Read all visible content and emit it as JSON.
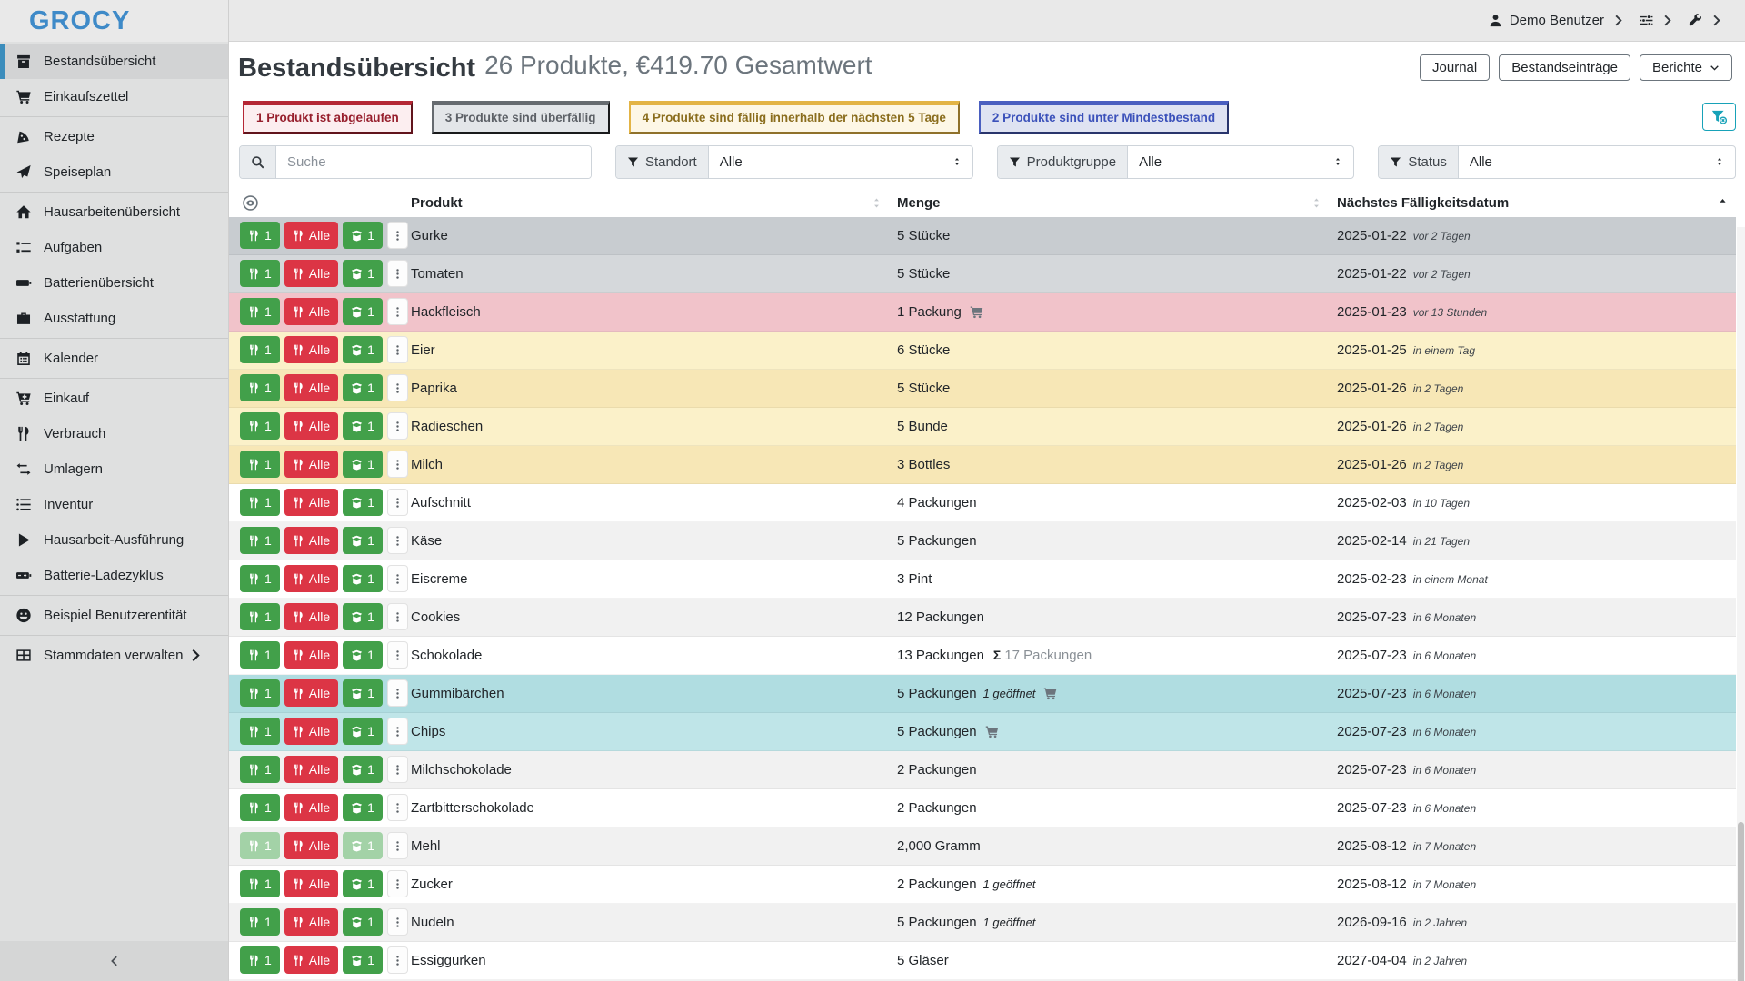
{
  "brand": {
    "name": "GROCY"
  },
  "topbar": {
    "user_label": "Demo Benutzer"
  },
  "page": {
    "title": "Bestandsübersicht",
    "subtitle": "26 Produkte, €419.70 Gesamtwert",
    "actions": [
      "Journal",
      "Bestandseinträge",
      "Berichte"
    ]
  },
  "alerts": [
    {
      "text": "1 Produkt ist abgelaufen",
      "theme": "red"
    },
    {
      "text": "3 Produkte sind überfällig",
      "theme": "gray"
    },
    {
      "text": "4 Produkte sind fällig innerhalb der nächsten 5 Tage",
      "theme": "yellow"
    },
    {
      "text": "2 Produkte sind unter Mindestbestand",
      "theme": "blue"
    }
  ],
  "filters": {
    "search_placeholder": "Suche",
    "selects": [
      {
        "label": "Standort",
        "value": "Alle",
        "icon": "funnel"
      },
      {
        "label": "Produktgruppe",
        "value": "Alle",
        "icon": "funnel"
      },
      {
        "label": "Status",
        "value": "Alle",
        "icon": "funnel"
      }
    ],
    "clear_icon": "funnel-x"
  },
  "table": {
    "columns": {
      "product": "Produkt",
      "amount": "Menge",
      "due": "Nächstes Fälligkeitsdatum"
    },
    "row_buttons": {
      "consume_one": "1",
      "consume_all": "Alle",
      "open_one": "1"
    },
    "rows": [
      {
        "product": "Gurke",
        "amount": "5 Stücke",
        "note": "",
        "sum": "",
        "cart": false,
        "date": "2025-01-22",
        "relative": "vor 2 Tagen",
        "status": "gray",
        "faded": false
      },
      {
        "product": "Tomaten",
        "amount": "5 Stücke",
        "note": "",
        "sum": "",
        "cart": false,
        "date": "2025-01-22",
        "relative": "vor 2 Tagen",
        "status": "gray",
        "faded": false
      },
      {
        "product": "Hackfleisch",
        "amount": "1 Packung",
        "note": "",
        "sum": "",
        "cart": true,
        "date": "2025-01-23",
        "relative": "vor 13 Stunden",
        "status": "red",
        "faded": false
      },
      {
        "product": "Eier",
        "amount": "6 Stücke",
        "note": "",
        "sum": "",
        "cart": false,
        "date": "2025-01-25",
        "relative": "in einem Tag",
        "status": "yellow",
        "faded": false
      },
      {
        "product": "Paprika",
        "amount": "5 Stücke",
        "note": "",
        "sum": "",
        "cart": false,
        "date": "2025-01-26",
        "relative": "in 2 Tagen",
        "status": "yellow",
        "faded": false
      },
      {
        "product": "Radieschen",
        "amount": "5 Bunde",
        "note": "",
        "sum": "",
        "cart": false,
        "date": "2025-01-26",
        "relative": "in 2 Tagen",
        "status": "yellow",
        "faded": false
      },
      {
        "product": "Milch",
        "amount": "3 Bottles",
        "note": "",
        "sum": "",
        "cart": false,
        "date": "2025-01-26",
        "relative": "in 2 Tagen",
        "status": "yellow",
        "faded": false
      },
      {
        "product": "Aufschnitt",
        "amount": "4 Packungen",
        "note": "",
        "sum": "",
        "cart": false,
        "date": "2025-02-03",
        "relative": "in 10 Tagen",
        "status": "none",
        "faded": false
      },
      {
        "product": "Käse",
        "amount": "5 Packungen",
        "note": "",
        "sum": "",
        "cart": false,
        "date": "2025-02-14",
        "relative": "in 21 Tagen",
        "status": "none",
        "faded": false
      },
      {
        "product": "Eiscreme",
        "amount": "3 Pint",
        "note": "",
        "sum": "",
        "cart": false,
        "date": "2025-02-23",
        "relative": "in einem Monat",
        "status": "none",
        "faded": false
      },
      {
        "product": "Cookies",
        "amount": "12 Packungen",
        "note": "",
        "sum": "",
        "cart": false,
        "date": "2025-07-23",
        "relative": "in 6 Monaten",
        "status": "none",
        "faded": false
      },
      {
        "product": "Schokolade",
        "amount": "13 Packungen",
        "note": "",
        "sum": "17 Packungen",
        "cart": false,
        "date": "2025-07-23",
        "relative": "in 6 Monaten",
        "status": "none",
        "faded": false
      },
      {
        "product": "Gummibärchen",
        "amount": "5 Packungen",
        "note": "1 geöffnet",
        "sum": "",
        "cart": true,
        "date": "2025-07-23",
        "relative": "in 6 Monaten",
        "status": "teal",
        "faded": false
      },
      {
        "product": "Chips",
        "amount": "5 Packungen",
        "note": "",
        "sum": "",
        "cart": true,
        "date": "2025-07-23",
        "relative": "in 6 Monaten",
        "status": "teal",
        "faded": false
      },
      {
        "product": "Milchschokolade",
        "amount": "2 Packungen",
        "note": "",
        "sum": "",
        "cart": false,
        "date": "2025-07-23",
        "relative": "in 6 Monaten",
        "status": "none",
        "faded": false
      },
      {
        "product": "Zartbitterschokolade",
        "amount": "2 Packungen",
        "note": "",
        "sum": "",
        "cart": false,
        "date": "2025-07-23",
        "relative": "in 6 Monaten",
        "status": "none",
        "faded": false
      },
      {
        "product": "Mehl",
        "amount": "2,000 Gramm",
        "note": "",
        "sum": "",
        "cart": false,
        "date": "2025-08-12",
        "relative": "in 7 Monaten",
        "status": "none",
        "faded": true
      },
      {
        "product": "Zucker",
        "amount": "2 Packungen",
        "note": "1 geöffnet",
        "sum": "",
        "cart": false,
        "date": "2025-08-12",
        "relative": "in 7 Monaten",
        "status": "none",
        "faded": false
      },
      {
        "product": "Nudeln",
        "amount": "5 Packungen",
        "note": "1 geöffnet",
        "sum": "",
        "cart": false,
        "date": "2026-09-16",
        "relative": "in 2 Jahren",
        "status": "none",
        "faded": false
      },
      {
        "product": "Essiggurken",
        "amount": "5 Gläser",
        "note": "",
        "sum": "",
        "cart": false,
        "date": "2027-04-04",
        "relative": "in 2 Jahren",
        "status": "none",
        "faded": false
      },
      {
        "product": "",
        "amount": "",
        "note": "",
        "sum": "",
        "cart": false,
        "date": "",
        "relative": "",
        "status": "none",
        "faded": false
      }
    ]
  },
  "sidebar": {
    "items": [
      {
        "label": "Bestandsübersicht",
        "icon": "package",
        "active": true
      },
      {
        "label": "Einkaufszettel",
        "icon": "cart",
        "divider_after": true
      },
      {
        "label": "Rezepte",
        "icon": "pizza"
      },
      {
        "label": "Speiseplan",
        "icon": "plane",
        "divider_after": true
      },
      {
        "label": "Hausarbeitenübersicht",
        "icon": "home"
      },
      {
        "label": "Aufgaben",
        "icon": "tasks"
      },
      {
        "label": "Batterienübersicht",
        "icon": "battery"
      },
      {
        "label": "Ausstattung",
        "icon": "toolbox",
        "divider_after": true
      },
      {
        "label": "Kalender",
        "icon": "calendar",
        "divider_after": true
      },
      {
        "label": "Einkauf",
        "icon": "cart-plus"
      },
      {
        "label": "Verbrauch",
        "icon": "utensils"
      },
      {
        "label": "Umlagern",
        "icon": "exchange"
      },
      {
        "label": "Inventur",
        "icon": "list"
      },
      {
        "label": "Hausarbeit-Ausführung",
        "icon": "play"
      },
      {
        "label": "Batterie-Ladezyklus",
        "icon": "battery-charge",
        "divider_after": true
      },
      {
        "label": "Beispiel Benutzerentität",
        "icon": "smiley",
        "divider_after": true
      },
      {
        "label": "Stammdaten verwalten",
        "icon": "table-grid",
        "chevron": true
      }
    ]
  },
  "colors": {
    "logo_blue": "#3e8ac8",
    "active_bar_blue": "#3c8dbc",
    "button_green": "#42a04a",
    "button_red": "#dc3545",
    "info_teal": "#17a2b8",
    "alert_red": "#b52735",
    "alert_gray": "#666b70",
    "alert_yellow": "#e3b445",
    "alert_blue": "#4a5fc0"
  }
}
